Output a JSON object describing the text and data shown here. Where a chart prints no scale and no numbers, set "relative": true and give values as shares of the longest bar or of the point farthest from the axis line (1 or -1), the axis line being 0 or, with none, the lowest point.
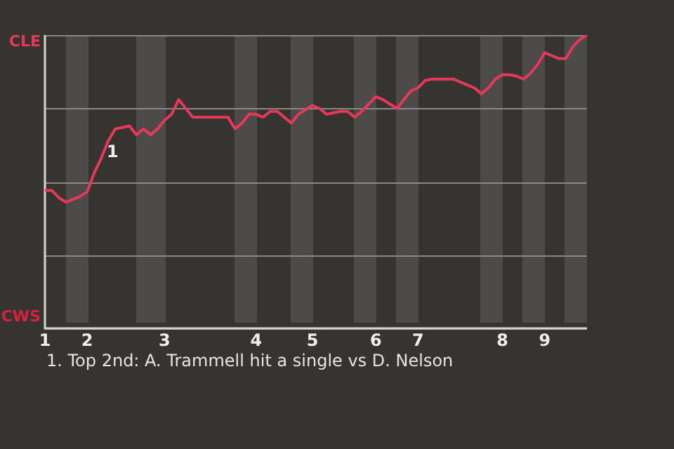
{
  "chart_data": {
    "type": "line",
    "relative": true,
    "categories": [
      "1",
      null,
      null,
      null,
      null,
      null,
      "2",
      null,
      null,
      null,
      null,
      null,
      null,
      null,
      null,
      null,
      null,
      "3",
      null,
      null,
      null,
      null,
      null,
      null,
      null,
      null,
      null,
      null,
      null,
      null,
      "4",
      null,
      null,
      null,
      null,
      null,
      null,
      null,
      "5",
      null,
      null,
      null,
      null,
      null,
      null,
      null,
      null,
      "6",
      null,
      null,
      null,
      null,
      null,
      "7",
      null,
      null,
      null,
      null,
      null,
      null,
      null,
      null,
      null,
      null,
      null,
      "8",
      null,
      null,
      null,
      null,
      null,
      "9",
      null,
      null,
      null,
      null,
      null,
      null
    ],
    "series": [
      {
        "color": "#e8385a",
        "values": [
          0.47,
          0.47,
          0.445,
          0.43,
          0.44,
          0.45,
          0.465,
          0.53,
          0.58,
          0.64,
          0.68,
          0.685,
          0.69,
          0.66,
          0.68,
          0.66,
          0.68,
          0.71,
          0.73,
          0.78,
          0.75,
          0.72,
          0.72,
          0.72,
          0.72,
          0.72,
          0.72,
          0.68,
          0.7,
          0.73,
          0.73,
          0.72,
          0.74,
          0.74,
          0.72,
          0.7,
          0.73,
          0.745,
          0.76,
          0.75,
          0.73,
          0.735,
          0.74,
          0.74,
          0.72,
          0.74,
          0.765,
          0.79,
          0.78,
          0.765,
          0.75,
          0.78,
          0.81,
          0.82,
          0.845,
          0.85,
          0.85,
          0.85,
          0.85,
          0.84,
          0.83,
          0.82,
          0.8,
          0.82,
          0.85,
          0.865,
          0.865,
          0.86,
          0.85,
          0.87,
          0.9,
          0.94,
          0.93,
          0.92,
          0.92,
          0.96,
          0.985,
          1
        ]
      }
    ],
    "annotations": [
      "CLE",
      "CWS",
      "1",
      "1. Top 2nd: A. Trammell hit a single vs D. Nelson"
    ],
    "grid": "y",
    "legend": false,
    "marker": "none",
    "line_style": "solid"
  }
}
